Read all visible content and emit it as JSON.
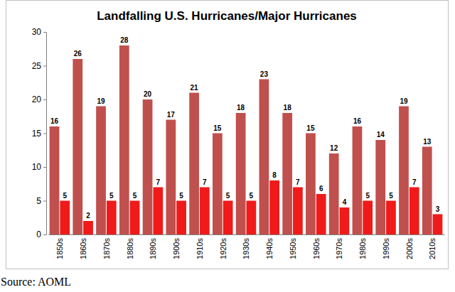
{
  "chart_data": {
    "type": "bar",
    "title": "Landfalling U.S. Hurricanes/Major Hurricanes",
    "categories": [
      "1850s",
      "1860s",
      "1870s",
      "1880s",
      "1890s",
      "1900s",
      "1910s",
      "1920s",
      "1930s",
      "1940s",
      "1950s",
      "1960s",
      "1970s",
      "1980s",
      "1990s",
      "2000s",
      "2010s"
    ],
    "series": [
      {
        "color": "#c0504d",
        "values": [
          16,
          26,
          19,
          28,
          20,
          17,
          21,
          15,
          18,
          23,
          18,
          15,
          12,
          16,
          14,
          19,
          13
        ]
      },
      {
        "color": "#f01a1a",
        "values": [
          5,
          2,
          5,
          5,
          7,
          5,
          7,
          5,
          5,
          8,
          7,
          6,
          4,
          5,
          5,
          7,
          3
        ]
      }
    ],
    "ylim": [
      0,
      30
    ],
    "yticks": [
      0,
      5,
      10,
      15,
      20,
      25,
      30
    ],
    "grid": false,
    "data_labels": true,
    "annotation": "Source: AOML"
  }
}
